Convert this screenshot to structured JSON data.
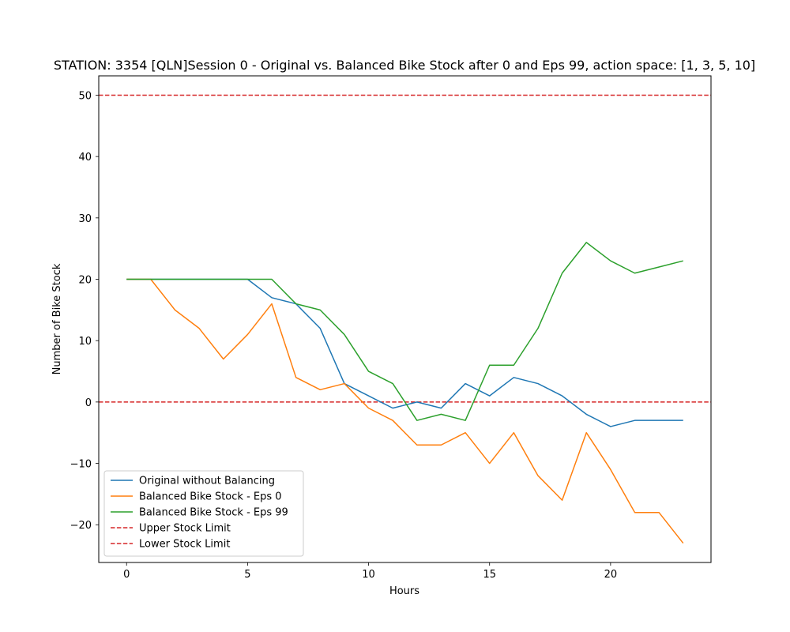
{
  "chart_data": {
    "type": "line",
    "title": "STATION: 3354 [QLN]Session 0 - Original vs. Balanced Bike Stock after 0 and Eps 99, action space: [1, 3, 5, 10]",
    "xlabel": "Hours",
    "ylabel": "Number of Bike Stock",
    "xlim": [
      -1.15,
      24.15
    ],
    "ylim": [
      -26.15,
      53.15
    ],
    "xticks": [
      0,
      5,
      10,
      15,
      20
    ],
    "yticks": [
      -20,
      -10,
      0,
      10,
      20,
      30,
      40,
      50
    ],
    "grid": false,
    "legend_position": "lower-left",
    "x": [
      0,
      1,
      2,
      3,
      4,
      5,
      6,
      7,
      8,
      9,
      10,
      11,
      12,
      13,
      14,
      15,
      16,
      17,
      18,
      19,
      20,
      21,
      22,
      23
    ],
    "series": [
      {
        "name": "Original without Balancing",
        "color": "#1f77b4",
        "style": "solid",
        "values": [
          20,
          20,
          20,
          20,
          20,
          20,
          17,
          16,
          12,
          3,
          1,
          -1,
          0,
          -1,
          3,
          1,
          4,
          3,
          1,
          -2,
          -4,
          -3,
          -3,
          -3
        ]
      },
      {
        "name": "Balanced Bike Stock - Eps 0",
        "color": "#ff7f0e",
        "style": "solid",
        "values": [
          20,
          20,
          15,
          12,
          7,
          11,
          16,
          4,
          2,
          3,
          -1,
          -3,
          -7,
          -7,
          -5,
          -10,
          -5,
          -12,
          -16,
          -5,
          -11,
          -18,
          -18,
          -23
        ]
      },
      {
        "name": "Balanced Bike Stock - Eps 99",
        "color": "#2ca02c",
        "style": "solid",
        "values": [
          20,
          20,
          20,
          20,
          20,
          20,
          20,
          16,
          15,
          11,
          5,
          3,
          -3,
          -2,
          -3,
          6,
          6,
          12,
          21,
          26,
          23,
          21,
          22,
          23
        ]
      }
    ],
    "hlines": [
      {
        "name": "Upper Stock Limit",
        "y": 50,
        "color": "#d62728",
        "style": "dashed"
      },
      {
        "name": "Lower Stock Limit",
        "y": 0,
        "color": "#d62728",
        "style": "dashed"
      }
    ]
  }
}
